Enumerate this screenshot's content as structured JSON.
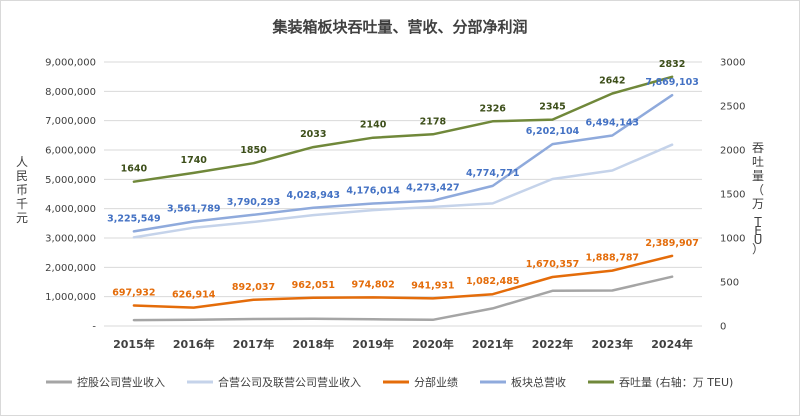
{
  "chart_data": {
    "type": "line",
    "title": "集装箱板块吞吐量、营收、分部净利润",
    "ylabel": "人民币千元",
    "y2label": "吞吐量（万 TEU）",
    "categories": [
      "2015年",
      "2016年",
      "2017年",
      "2018年",
      "2019年",
      "2020年",
      "2021年",
      "2022年",
      "2023年",
      "2024年"
    ],
    "ylim": [
      0,
      9000000
    ],
    "y2lim": [
      0,
      3000
    ],
    "yticks": [
      "-",
      "1,000,000",
      "2,000,000",
      "3,000,000",
      "4,000,000",
      "5,000,000",
      "6,000,000",
      "7,000,000",
      "8,000,000",
      "9,000,000"
    ],
    "y2ticks": [
      "0",
      "500",
      "1000",
      "1500",
      "2000",
      "2500",
      "3000"
    ],
    "grid": true,
    "legend_position": "bottom",
    "series": [
      {
        "name": "控股公司营业收入",
        "axis": "left",
        "color": "#a5a5a5",
        "labels": false,
        "values": [
          200000,
          210000,
          240000,
          250000,
          230000,
          210000,
          600000,
          1200000,
          1210000,
          1680000
        ]
      },
      {
        "name": "合营公司及联营公司营业收入",
        "axis": "left",
        "color": "#c5d3ea",
        "labels": false,
        "values": [
          3020000,
          3350000,
          3550000,
          3780000,
          3950000,
          4060000,
          4180000,
          5010000,
          5300000,
          6180000
        ]
      },
      {
        "name": "分部业绩",
        "axis": "left",
        "color": "#e46c0a",
        "labels": true,
        "values": [
          697932,
          626914,
          892037,
          962051,
          974802,
          941931,
          1082485,
          1670357,
          1888787,
          2389907
        ],
        "value_labels": [
          "697,932",
          "626,914",
          "892,037",
          "962,051",
          "974,802",
          "941,931",
          "1,082,485",
          "1,670,357",
          "1,888,787",
          "2,389,907"
        ]
      },
      {
        "name": "板块总营收",
        "axis": "left",
        "color": "#8faadc",
        "labels": true,
        "label_color": "#4472c4",
        "values": [
          3225549,
          3561789,
          3790293,
          4028943,
          4176014,
          4273427,
          4774771,
          6202104,
          6494143,
          7869103
        ],
        "value_labels": [
          "3,225,549",
          "3,561,789",
          "3,790,293",
          "4,028,943",
          "4,176,014",
          "4,273,427",
          "4,774,771",
          "6,202,104",
          "6,494,143",
          "7,869,103"
        ]
      },
      {
        "name": "吞吐量 (右轴：万 TEU)",
        "axis": "right",
        "color": "#70883a",
        "labels": true,
        "label_color": "#3d4f1a",
        "values": [
          1640,
          1740,
          1850,
          2033,
          2140,
          2178,
          2326,
          2345,
          2642,
          2832
        ],
        "value_labels": [
          "1640",
          "1740",
          "1850",
          "2033",
          "2140",
          "2178",
          "2326",
          "2345",
          "2642",
          "2832"
        ]
      }
    ]
  }
}
